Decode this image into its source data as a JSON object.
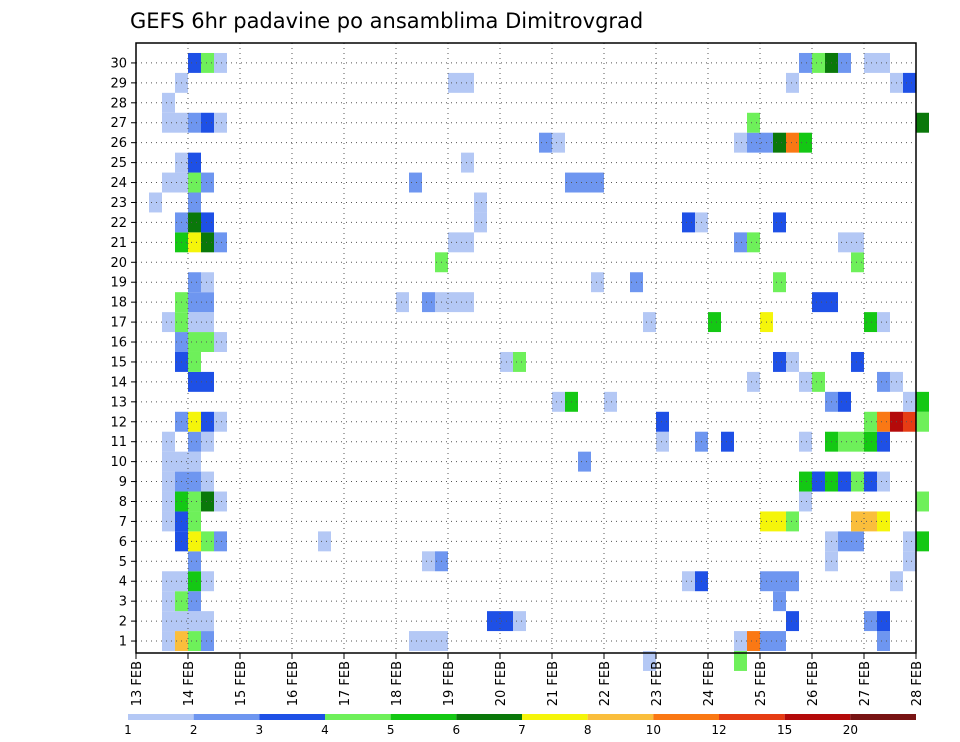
{
  "chart_data": {
    "type": "heatmap",
    "title": "GEFS 6hr padavine po ansamblima Dimitrovgrad",
    "xlabel": "",
    "ylabel": "",
    "x_tick_labels": [
      "13 FEB",
      "14 FEB",
      "15 FEB",
      "16 FEB",
      "17 FEB",
      "18 FEB",
      "19 FEB",
      "20 FEB",
      "21 FEB",
      "22 FEB",
      "23 FEB",
      "24 FEB",
      "25 FEB",
      "26 FEB",
      "27 FEB",
      "28 FEB"
    ],
    "x_start_day": 13,
    "xlim_days": [
      13,
      28
    ],
    "y_tick_labels": [
      "1",
      "2",
      "3",
      "4",
      "5",
      "6",
      "7",
      "8",
      "9",
      "10",
      "11",
      "12",
      "13",
      "14",
      "15",
      "16",
      "17",
      "18",
      "19",
      "20",
      "21",
      "22",
      "23",
      "24",
      "25",
      "26",
      "27",
      "28",
      "29",
      "30"
    ],
    "ylim_members": [
      0,
      30
    ],
    "grid": true,
    "grid_style": "dotted",
    "legend_position": "bottom",
    "colorbar": {
      "labels": [
        "1",
        "2",
        "3",
        "4",
        "5",
        "6",
        "7",
        "8",
        "10",
        "12",
        "15",
        "20"
      ],
      "colors": [
        "#b4c8f5",
        "#6e96f0",
        "#1e50e6",
        "#6ef05a",
        "#14c814",
        "#0a780a",
        "#f5f50a",
        "#fabe3c",
        "#fa7814",
        "#e63c14",
        "#b40a0a",
        "#781414"
      ]
    },
    "cells": [
      [
        "13 FEB 12Z",
        0,
        "#b4c8f5"
      ],
      [
        "13 FEB 12Z",
        1,
        "#b4c8f5"
      ],
      [
        "13 FEB 12Z",
        2,
        "#b4c8f5"
      ],
      [
        "13 FEB 12Z",
        3,
        "#b4c8f5"
      ],
      [
        "13 FEB 12Z",
        6,
        "#b4c8f5"
      ],
      [
        "13 FEB 12Z",
        7,
        "#b4c8f5"
      ],
      [
        "13 FEB 12Z",
        8,
        "#b4c8f5"
      ],
      [
        "13 FEB 12Z",
        9,
        "#b4c8f5"
      ],
      [
        "13 FEB 12Z",
        10,
        "#b4c8f5"
      ],
      [
        "13 FEB 12Z",
        16,
        "#b4c8f5"
      ],
      [
        "13 FEB 12Z",
        23,
        "#b4c8f5"
      ],
      [
        "13 FEB 12Z",
        26,
        "#b4c8f5"
      ],
      [
        "13 FEB 12Z",
        27,
        "#b4c8f5"
      ],
      [
        "13 FEB 06Z",
        22,
        "#b4c8f5"
      ],
      [
        "13 FEB 18Z",
        0,
        "#fabe3c"
      ],
      [
        "13 FEB 18Z",
        1,
        "#b4c8f5"
      ],
      [
        "13 FEB 18Z",
        2,
        "#6ef05a"
      ],
      [
        "13 FEB 18Z",
        3,
        "#b4c8f5"
      ],
      [
        "13 FEB 18Z",
        5,
        "#1e50e6"
      ],
      [
        "13 FEB 18Z",
        6,
        "#1e50e6"
      ],
      [
        "13 FEB 18Z",
        7,
        "#14c814"
      ],
      [
        "13 FEB 18Z",
        8,
        "#6e96f0"
      ],
      [
        "13 FEB 18Z",
        9,
        "#b4c8f5"
      ],
      [
        "13 FEB 18Z",
        11,
        "#6e96f0"
      ],
      [
        "13 FEB 18Z",
        14,
        "#1e50e6"
      ],
      [
        "13 FEB 18Z",
        15,
        "#6e96f0"
      ],
      [
        "13 FEB 18Z",
        16,
        "#6ef05a"
      ],
      [
        "13 FEB 18Z",
        17,
        "#6ef05a"
      ],
      [
        "13 FEB 18Z",
        20,
        "#14c814"
      ],
      [
        "13 FEB 18Z",
        21,
        "#6e96f0"
      ],
      [
        "13 FEB 18Z",
        23,
        "#b4c8f5"
      ],
      [
        "13 FEB 18Z",
        24,
        "#b4c8f5"
      ],
      [
        "13 FEB 18Z",
        26,
        "#b4c8f5"
      ],
      [
        "13 FEB 18Z",
        28,
        "#b4c8f5"
      ],
      [
        "14 FEB 00Z",
        0,
        "#6ef05a"
      ],
      [
        "14 FEB 00Z",
        1,
        "#b4c8f5"
      ],
      [
        "14 FEB 00Z",
        2,
        "#6e96f0"
      ],
      [
        "14 FEB 00Z",
        3,
        "#14c814"
      ],
      [
        "14 FEB 00Z",
        4,
        "#6e96f0"
      ],
      [
        "14 FEB 00Z",
        5,
        "#f5f50a"
      ],
      [
        "14 FEB 00Z",
        6,
        "#6ef05a"
      ],
      [
        "14 FEB 00Z",
        7,
        "#6ef05a"
      ],
      [
        "14 FEB 00Z",
        8,
        "#6e96f0"
      ],
      [
        "14 FEB 00Z",
        9,
        "#b4c8f5"
      ],
      [
        "14 FEB 00Z",
        10,
        "#6e96f0"
      ],
      [
        "14 FEB 00Z",
        11,
        "#f5f50a"
      ],
      [
        "14 FEB 00Z",
        13,
        "#1e50e6"
      ],
      [
        "14 FEB 00Z",
        14,
        "#6ef05a"
      ],
      [
        "14 FEB 00Z",
        15,
        "#6ef05a"
      ],
      [
        "14 FEB 00Z",
        16,
        "#b4c8f5"
      ],
      [
        "14 FEB 00Z",
        17,
        "#6e96f0"
      ],
      [
        "14 FEB 00Z",
        18,
        "#6e96f0"
      ],
      [
        "14 FEB 00Z",
        20,
        "#f5f50a"
      ],
      [
        "14 FEB 00Z",
        21,
        "#0a780a"
      ],
      [
        "14 FEB 00Z",
        22,
        "#6e96f0"
      ],
      [
        "14 FEB 00Z",
        23,
        "#6ef05a"
      ],
      [
        "14 FEB 00Z",
        24,
        "#1e50e6"
      ],
      [
        "14 FEB 00Z",
        26,
        "#6e96f0"
      ],
      [
        "14 FEB 00Z",
        29,
        "#1e50e6"
      ],
      [
        "14 FEB 06Z",
        0,
        "#6e96f0"
      ],
      [
        "14 FEB 06Z",
        1,
        "#b4c8f5"
      ],
      [
        "14 FEB 06Z",
        3,
        "#b4c8f5"
      ],
      [
        "14 FEB 06Z",
        5,
        "#6ef05a"
      ],
      [
        "14 FEB 06Z",
        7,
        "#0a780a"
      ],
      [
        "14 FEB 06Z",
        8,
        "#b4c8f5"
      ],
      [
        "14 FEB 06Z",
        10,
        "#b4c8f5"
      ],
      [
        "14 FEB 06Z",
        11,
        "#1e50e6"
      ],
      [
        "14 FEB 06Z",
        13,
        "#1e50e6"
      ],
      [
        "14 FEB 06Z",
        15,
        "#6ef05a"
      ],
      [
        "14 FEB 06Z",
        16,
        "#b4c8f5"
      ],
      [
        "14 FEB 06Z",
        17,
        "#6e96f0"
      ],
      [
        "14 FEB 06Z",
        18,
        "#b4c8f5"
      ],
      [
        "14 FEB 06Z",
        20,
        "#0a780a"
      ],
      [
        "14 FEB 06Z",
        21,
        "#1e50e6"
      ],
      [
        "14 FEB 06Z",
        23,
        "#6e96f0"
      ],
      [
        "14 FEB 06Z",
        26,
        "#1e50e6"
      ],
      [
        "14 FEB 06Z",
        29,
        "#6ef05a"
      ],
      [
        "14 FEB 12Z",
        5,
        "#6e96f0"
      ],
      [
        "14 FEB 12Z",
        7,
        "#b4c8f5"
      ],
      [
        "14 FEB 12Z",
        11,
        "#b4c8f5"
      ],
      [
        "14 FEB 12Z",
        15,
        "#b4c8f5"
      ],
      [
        "14 FEB 12Z",
        20,
        "#6e96f0"
      ],
      [
        "14 FEB 12Z",
        26,
        "#b4c8f5"
      ],
      [
        "14 FEB 12Z",
        29,
        "#b4c8f5"
      ],
      [
        "16 FEB 12Z",
        5,
        "#b4c8f5"
      ],
      [
        "18 FEB 00Z",
        17,
        "#b4c8f5"
      ],
      [
        "18 FEB 06Z",
        0,
        "#b4c8f5"
      ],
      [
        "18 FEB 06Z",
        23,
        "#6e96f0"
      ],
      [
        "18 FEB 12Z",
        0,
        "#b4c8f5"
      ],
      [
        "18 FEB 12Z",
        4,
        "#b4c8f5"
      ],
      [
        "18 FEB 12Z",
        17,
        "#6e96f0"
      ],
      [
        "18 FEB 18Z",
        0,
        "#b4c8f5"
      ],
      [
        "18 FEB 18Z",
        4,
        "#6e96f0"
      ],
      [
        "18 FEB 18Z",
        17,
        "#b4c8f5"
      ],
      [
        "18 FEB 18Z",
        19,
        "#6ef05a"
      ],
      [
        "19 FEB 00Z",
        17,
        "#b4c8f5"
      ],
      [
        "19 FEB 00Z",
        20,
        "#b4c8f5"
      ],
      [
        "19 FEB 00Z",
        28,
        "#b4c8f5"
      ],
      [
        "19 FEB 06Z",
        17,
        "#b4c8f5"
      ],
      [
        "19 FEB 06Z",
        20,
        "#b4c8f5"
      ],
      [
        "19 FEB 06Z",
        24,
        "#b4c8f5"
      ],
      [
        "19 FEB 06Z",
        28,
        "#b4c8f5"
      ],
      [
        "19 FEB 12Z",
        21,
        "#b4c8f5"
      ],
      [
        "19 FEB 12Z",
        22,
        "#b4c8f5"
      ],
      [
        "19 FEB 18Z",
        1,
        "#1e50e6"
      ],
      [
        "20 FEB 00Z",
        1,
        "#1e50e6"
      ],
      [
        "20 FEB 00Z",
        14,
        "#b4c8f5"
      ],
      [
        "20 FEB 06Z",
        1,
        "#b4c8f5"
      ],
      [
        "20 FEB 06Z",
        14,
        "#6ef05a"
      ],
      [
        "20 FEB 18Z",
        25,
        "#6e96f0"
      ],
      [
        "21 FEB 00Z",
        12,
        "#b4c8f5"
      ],
      [
        "21 FEB 00Z",
        25,
        "#b4c8f5"
      ],
      [
        "21 FEB 06Z",
        12,
        "#14c814"
      ],
      [
        "21 FEB 06Z",
        23,
        "#6e96f0"
      ],
      [
        "21 FEB 12Z",
        9,
        "#6e96f0"
      ],
      [
        "21 FEB 12Z",
        23,
        "#6e96f0"
      ],
      [
        "21 FEB 18Z",
        18,
        "#b4c8f5"
      ],
      [
        "21 FEB 18Z",
        23,
        "#6e96f0"
      ],
      [
        "22 FEB 00Z",
        12,
        "#b4c8f5"
      ],
      [
        "22 FEB 12Z",
        18,
        "#6e96f0"
      ],
      [
        "22 FEB 18Z",
        16,
        "#b4c8f5"
      ],
      [
        "22 FEB 18Z",
        -1,
        "#b4c8f5"
      ],
      [
        "23 FEB 00Z",
        10,
        "#b4c8f5"
      ],
      [
        "23 FEB 00Z",
        11,
        "#1e50e6"
      ],
      [
        "23 FEB 12Z",
        3,
        "#b4c8f5"
      ],
      [
        "23 FEB 12Z",
        21,
        "#1e50e6"
      ],
      [
        "23 FEB 18Z",
        3,
        "#1e50e6"
      ],
      [
        "23 FEB 18Z",
        10,
        "#6e96f0"
      ],
      [
        "23 FEB 18Z",
        21,
        "#b4c8f5"
      ],
      [
        "24 FEB 00Z",
        16,
        "#14c814"
      ],
      [
        "24 FEB 06Z",
        10,
        "#1e50e6"
      ],
      [
        "24 FEB 12Z",
        -1,
        "#6ef05a"
      ],
      [
        "24 FEB 12Z",
        0,
        "#b4c8f5"
      ],
      [
        "24 FEB 12Z",
        20,
        "#6e96f0"
      ],
      [
        "24 FEB 12Z",
        25,
        "#b4c8f5"
      ],
      [
        "24 FEB 18Z",
        0,
        "#fa7814"
      ],
      [
        "24 FEB 18Z",
        13,
        "#b4c8f5"
      ],
      [
        "24 FEB 18Z",
        20,
        "#6ef05a"
      ],
      [
        "24 FEB 18Z",
        25,
        "#6e96f0"
      ],
      [
        "24 FEB 18Z",
        26,
        "#6ef05a"
      ],
      [
        "25 FEB 00Z",
        0,
        "#6e96f0"
      ],
      [
        "25 FEB 00Z",
        3,
        "#6e96f0"
      ],
      [
        "25 FEB 00Z",
        6,
        "#f5f50a"
      ],
      [
        "25 FEB 00Z",
        16,
        "#f5f50a"
      ],
      [
        "25 FEB 00Z",
        25,
        "#6e96f0"
      ],
      [
        "25 FEB 06Z",
        0,
        "#6e96f0"
      ],
      [
        "25 FEB 06Z",
        2,
        "#6e96f0"
      ],
      [
        "25 FEB 06Z",
        3,
        "#6e96f0"
      ],
      [
        "25 FEB 06Z",
        6,
        "#f5f50a"
      ],
      [
        "25 FEB 06Z",
        14,
        "#1e50e6"
      ],
      [
        "25 FEB 06Z",
        18,
        "#6ef05a"
      ],
      [
        "25 FEB 06Z",
        21,
        "#1e50e6"
      ],
      [
        "25 FEB 06Z",
        25,
        "#0a780a"
      ],
      [
        "25 FEB 12Z",
        1,
        "#1e50e6"
      ],
      [
        "25 FEB 12Z",
        3,
        "#6e96f0"
      ],
      [
        "25 FEB 12Z",
        6,
        "#6ef05a"
      ],
      [
        "25 FEB 12Z",
        14,
        "#b4c8f5"
      ],
      [
        "25 FEB 12Z",
        25,
        "#fa7814"
      ],
      [
        "25 FEB 12Z",
        28,
        "#b4c8f5"
      ],
      [
        "25 FEB 18Z",
        7,
        "#b4c8f5"
      ],
      [
        "25 FEB 18Z",
        8,
        "#14c814"
      ],
      [
        "25 FEB 18Z",
        10,
        "#b4c8f5"
      ],
      [
        "25 FEB 18Z",
        13,
        "#b4c8f5"
      ],
      [
        "25 FEB 18Z",
        25,
        "#14c814"
      ],
      [
        "25 FEB 18Z",
        29,
        "#6e96f0"
      ],
      [
        "26 FEB 00Z",
        8,
        "#1e50e6"
      ],
      [
        "26 FEB 00Z",
        13,
        "#6ef05a"
      ],
      [
        "26 FEB 00Z",
        17,
        "#1e50e6"
      ],
      [
        "26 FEB 00Z",
        29,
        "#6ef05a"
      ],
      [
        "26 FEB 06Z",
        4,
        "#b4c8f5"
      ],
      [
        "26 FEB 06Z",
        5,
        "#b4c8f5"
      ],
      [
        "26 FEB 06Z",
        8,
        "#14c814"
      ],
      [
        "26 FEB 06Z",
        10,
        "#14c814"
      ],
      [
        "26 FEB 06Z",
        12,
        "#6e96f0"
      ],
      [
        "26 FEB 06Z",
        17,
        "#1e50e6"
      ],
      [
        "26 FEB 06Z",
        29,
        "#0a780a"
      ],
      [
        "26 FEB 12Z",
        5,
        "#6e96f0"
      ],
      [
        "26 FEB 12Z",
        8,
        "#1e50e6"
      ],
      [
        "26 FEB 12Z",
        10,
        "#6ef05a"
      ],
      [
        "26 FEB 12Z",
        12,
        "#1e50e6"
      ],
      [
        "26 FEB 12Z",
        20,
        "#b4c8f5"
      ],
      [
        "26 FEB 12Z",
        29,
        "#6e96f0"
      ],
      [
        "26 FEB 18Z",
        5,
        "#6e96f0"
      ],
      [
        "26 FEB 18Z",
        6,
        "#fabe3c"
      ],
      [
        "26 FEB 18Z",
        8,
        "#6ef05a"
      ],
      [
        "26 FEB 18Z",
        10,
        "#6ef05a"
      ],
      [
        "26 FEB 18Z",
        14,
        "#1e50e6"
      ],
      [
        "26 FEB 18Z",
        19,
        "#6ef05a"
      ],
      [
        "26 FEB 18Z",
        20,
        "#b4c8f5"
      ],
      [
        "27 FEB 00Z",
        1,
        "#6e96f0"
      ],
      [
        "27 FEB 00Z",
        6,
        "#fabe3c"
      ],
      [
        "26 FEB 00Z",
        8,
        "#1e50e6"
      ],
      [
        "27 FEB 00Z",
        8,
        "#1e50e6"
      ],
      [
        "27 FEB 00Z",
        10,
        "#14c814"
      ],
      [
        "27 FEB 00Z",
        11,
        "#6ef05a"
      ],
      [
        "27 FEB 00Z",
        16,
        "#14c814"
      ],
      [
        "27 FEB 00Z",
        29,
        "#b4c8f5"
      ],
      [
        "27 FEB 06Z",
        0,
        "#6e96f0"
      ],
      [
        "27 FEB 06Z",
        1,
        "#1e50e6"
      ],
      [
        "27 FEB 06Z",
        6,
        "#f5f50a"
      ],
      [
        "27 FEB 06Z",
        8,
        "#b4c8f5"
      ],
      [
        "27 FEB 06Z",
        10,
        "#1e50e6"
      ],
      [
        "27 FEB 06Z",
        11,
        "#fa7814"
      ],
      [
        "27 FEB 06Z",
        13,
        "#6e96f0"
      ],
      [
        "27 FEB 06Z",
        16,
        "#b4c8f5"
      ],
      [
        "27 FEB 06Z",
        29,
        "#b4c8f5"
      ],
      [
        "27 FEB 12Z",
        3,
        "#b4c8f5"
      ],
      [
        "27 FEB 12Z",
        11,
        "#b40a0a"
      ],
      [
        "27 FEB 12Z",
        13,
        "#b4c8f5"
      ],
      [
        "27 FEB 12Z",
        28,
        "#b4c8f5"
      ],
      [
        "27 FEB 18Z",
        4,
        "#b4c8f5"
      ],
      [
        "27 FEB 18Z",
        5,
        "#b4c8f5"
      ],
      [
        "27 FEB 18Z",
        11,
        "#e63c14"
      ],
      [
        "27 FEB 18Z",
        12,
        "#b4c8f5"
      ],
      [
        "27 FEB 18Z",
        28,
        "#1e50e6"
      ],
      [
        "28 FEB 00Z",
        5,
        "#14c814"
      ],
      [
        "28 FEB 00Z",
        7,
        "#6ef05a"
      ],
      [
        "28 FEB 00Z",
        11,
        "#6ef05a"
      ],
      [
        "28 FEB 00Z",
        12,
        "#14c814"
      ],
      [
        "28 FEB 00Z",
        26,
        "#0a780a"
      ]
    ]
  }
}
